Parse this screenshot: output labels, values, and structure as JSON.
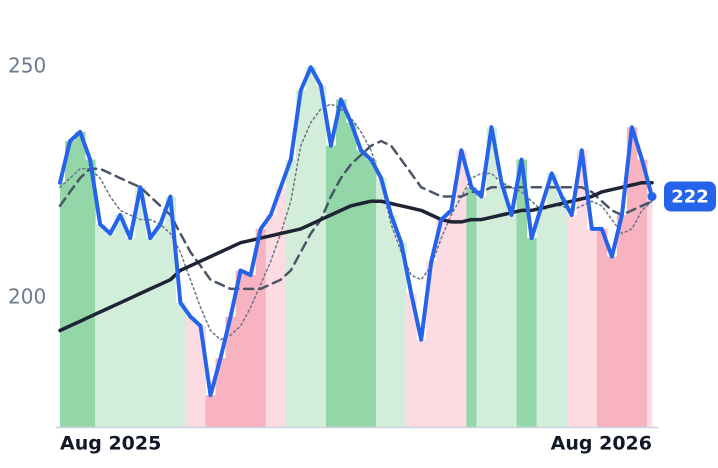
{
  "chart_data": {
    "type": "line",
    "categories": [
      "Aug 2025",
      null,
      null,
      null,
      null,
      null,
      null,
      null,
      null,
      null,
      null,
      null,
      null,
      null,
      null,
      null,
      null,
      null,
      null,
      null,
      null,
      null,
      null,
      null,
      null,
      null,
      null,
      null,
      null,
      null,
      null,
      null,
      null,
      null,
      null,
      null,
      null,
      null,
      null,
      null,
      null,
      null,
      null,
      null,
      null,
      null,
      null,
      null,
      null,
      null,
      null,
      null,
      null,
      null,
      null,
      null,
      null,
      null,
      null,
      "Aug 2026"
    ],
    "series": [
      {
        "color": "#2563eb",
        "width": 4,
        "dash": "solid",
        "values": [
          225,
          234,
          236,
          230,
          216,
          214,
          218,
          213,
          224,
          213,
          216,
          222,
          199,
          196,
          194,
          179,
          187,
          196,
          206,
          205,
          215,
          218,
          224,
          230,
          245,
          250,
          246,
          233,
          243,
          238,
          232,
          230,
          226,
          218,
          212,
          201,
          191,
          208,
          217,
          219,
          232,
          224,
          222,
          237,
          225,
          218,
          230,
          213,
          220,
          227,
          222,
          218,
          232,
          215,
          215,
          209,
          218,
          237,
          230,
          222
        ]
      },
      {
        "color": "#1e2433",
        "width": 3.5,
        "dash": "solid",
        "values": [
          193,
          194,
          195,
          196,
          197,
          198,
          199,
          200,
          201,
          202,
          203,
          204,
          206,
          207,
          208,
          209,
          210,
          211,
          212,
          212.5,
          213,
          213.5,
          214,
          214.5,
          215,
          216,
          217,
          218,
          219,
          220,
          220.5,
          221,
          221,
          220.5,
          220,
          219.5,
          219,
          218,
          217,
          216.5,
          216.5,
          217,
          217,
          217.5,
          218,
          218.5,
          219,
          219,
          219.5,
          220,
          220.5,
          221,
          221.5,
          222,
          223,
          223.5,
          224,
          224.5,
          225,
          225
        ]
      },
      {
        "color": "#4b5568",
        "width": 2.5,
        "dash": "dashed",
        "values": [
          220,
          223,
          226,
          228,
          228,
          227,
          226,
          225,
          224,
          222,
          220,
          218,
          214,
          210,
          207,
          204,
          203,
          202,
          202,
          202,
          202,
          203,
          204,
          206,
          210,
          214,
          217,
          222,
          226,
          229,
          231,
          233,
          234,
          233,
          230,
          227,
          224,
          223,
          222,
          222,
          222,
          223,
          223,
          224,
          224,
          224,
          224,
          224,
          224,
          224,
          224,
          224,
          224,
          223,
          221,
          219,
          218,
          219,
          220,
          221
        ]
      },
      {
        "color": "#6b7488",
        "width": 1.5,
        "dash": "dotted",
        "values": [
          224,
          226,
          228,
          228,
          226,
          222,
          219,
          218,
          217,
          217,
          216,
          214,
          210,
          204,
          198,
          193,
          191,
          192,
          194,
          198,
          203,
          208,
          214,
          221,
          233,
          238,
          241,
          242,
          241,
          239,
          236,
          232,
          225,
          216,
          210,
          205,
          204,
          207,
          213,
          218,
          222,
          226,
          227,
          227,
          225,
          224,
          223,
          221,
          219,
          220,
          220,
          219,
          220,
          221,
          220,
          217,
          214,
          215,
          219,
          221
        ]
      }
    ],
    "band_colors": [
      "#93d6a8",
      "#93d6a8",
      "#93d6a8",
      "#93d6a8",
      "#d2eedb",
      "#d2eedb",
      "#d2eedb",
      "#d2eedb",
      "#d2eedb",
      "#d2eedb",
      "#d2eedb",
      "#d2eedb",
      "#d2eedb",
      "#fcdbe2",
      "#fcdbe2",
      "#f8b3c1",
      "#f8b3c1",
      "#f8b3c1",
      "#f8b3c1",
      "#f8b3c1",
      "#f8b3c1",
      "#fcdbe2",
      "#fcdbe2",
      "#d2eedb",
      "#d2eedb",
      "#d2eedb",
      "#d2eedb",
      "#93d6a8",
      "#93d6a8",
      "#93d6a8",
      "#93d6a8",
      "#93d6a8",
      "#d2eedb",
      "#d2eedb",
      "#d2eedb",
      "#fcdbe2",
      "#fcdbe2",
      "#fcdbe2",
      "#fcdbe2",
      "#fcdbe2",
      "#fcdbe2",
      "#93d6a8",
      "#d2eedb",
      "#d2eedb",
      "#d2eedb",
      "#d2eedb",
      "#93d6a8",
      "#93d6a8",
      "#d2eedb",
      "#d2eedb",
      "#d2eedb",
      "#fcdbe2",
      "#fcdbe2",
      "#fcdbe2",
      "#f8b3c1",
      "#f8b3c1",
      "#f8b3c1",
      "#f8b3c1",
      "#f8b3c1",
      "#fcdbe2"
    ],
    "ylim": [
      172,
      260
    ],
    "yticks": [
      200,
      250
    ],
    "grid": false
  }
}
